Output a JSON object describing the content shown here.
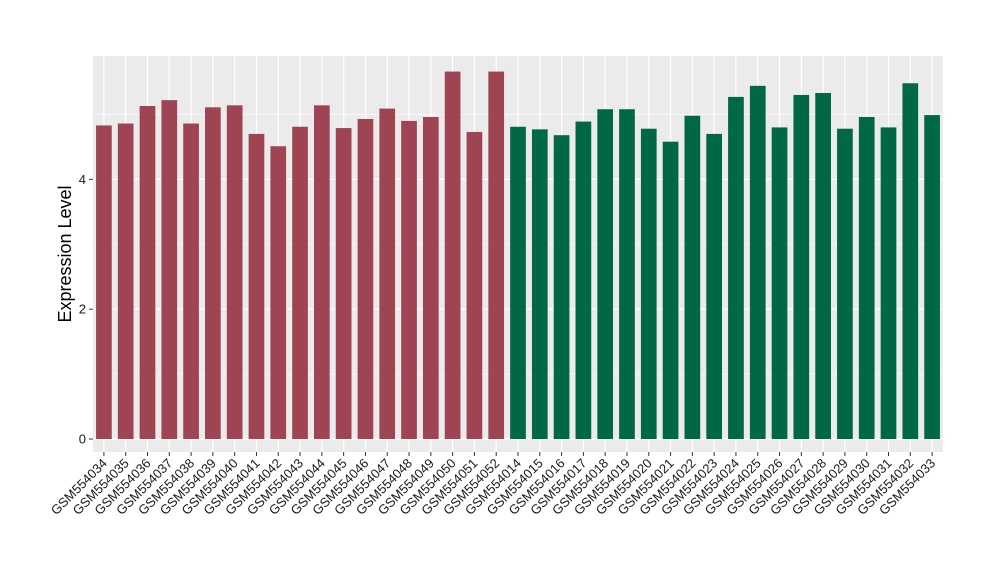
{
  "chart_data": {
    "type": "bar",
    "title": "",
    "xlabel": "",
    "ylabel": "Expression Level",
    "ylim": [
      -0.2,
      5.9
    ],
    "yticks": [
      0,
      2,
      4
    ],
    "grid": true,
    "legend": "none",
    "categories": [
      "GSM554034",
      "GSM554035",
      "GSM554036",
      "GSM554037",
      "GSM554038",
      "GSM554039",
      "GSM554040",
      "GSM554041",
      "GSM554042",
      "GSM554043",
      "GSM554044",
      "GSM554045",
      "GSM554046",
      "GSM554047",
      "GSM554048",
      "GSM554049",
      "GSM554050",
      "GSM554051",
      "GSM554052",
      "GSM554014",
      "GSM554015",
      "GSM554016",
      "GSM554017",
      "GSM554018",
      "GSM554019",
      "GSM554020",
      "GSM554021",
      "GSM554022",
      "GSM554023",
      "GSM554024",
      "GSM554025",
      "GSM554026",
      "GSM554027",
      "GSM554028",
      "GSM554029",
      "GSM554030",
      "GSM554031",
      "GSM554032",
      "GSM554033"
    ],
    "values": [
      4.83,
      4.86,
      5.13,
      5.22,
      4.86,
      5.11,
      5.14,
      4.7,
      4.51,
      4.81,
      5.14,
      4.79,
      4.93,
      5.09,
      4.9,
      4.96,
      5.66,
      4.73,
      5.66,
      4.81,
      4.77,
      4.68,
      4.89,
      5.08,
      5.08,
      4.78,
      4.58,
      4.98,
      4.7,
      5.27,
      5.44,
      4.8,
      5.3,
      5.33,
      4.78,
      4.96,
      4.8,
      5.48,
      4.99
    ],
    "bar_colors": [
      "#9e4452",
      "#9e4452",
      "#9e4452",
      "#9e4452",
      "#9e4452",
      "#9e4452",
      "#9e4452",
      "#9e4452",
      "#9e4452",
      "#9e4452",
      "#9e4452",
      "#9e4452",
      "#9e4452",
      "#9e4452",
      "#9e4452",
      "#9e4452",
      "#9e4452",
      "#9e4452",
      "#9e4452",
      "#006747",
      "#006747",
      "#006747",
      "#006747",
      "#006747",
      "#006747",
      "#006747",
      "#006747",
      "#006747",
      "#006747",
      "#006747",
      "#006747",
      "#006747",
      "#006747",
      "#006747",
      "#006747",
      "#006747",
      "#006747",
      "#006747",
      "#006747"
    ],
    "panel_background": "#ebebeb",
    "grid_color": "#ffffff"
  }
}
